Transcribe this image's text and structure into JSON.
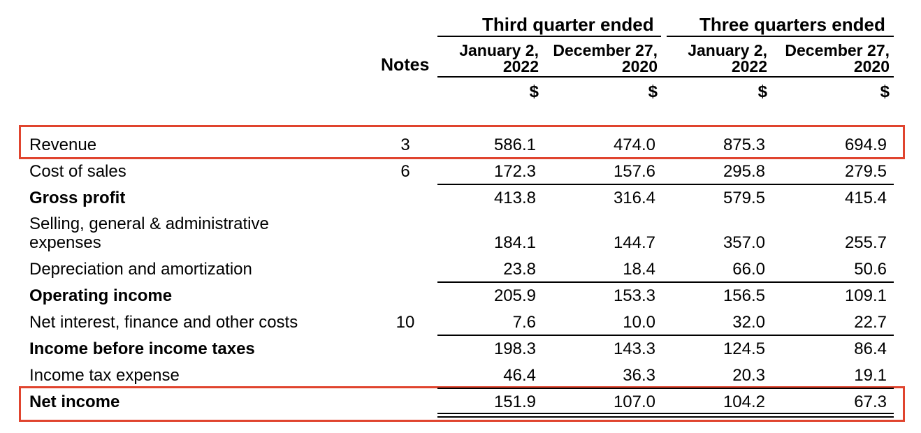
{
  "header": {
    "group1_title": "Third quarter ended",
    "group2_title": "Three quarters ended",
    "notes_label": "Notes",
    "columns": [
      {
        "line1": "January 2,",
        "line2": "2022",
        "currency": "$"
      },
      {
        "line1": "December 27,",
        "line2": "2020",
        "currency": "$"
      },
      {
        "line1": "January 2,",
        "line2": "2022",
        "currency": "$"
      },
      {
        "line1": "December 27,",
        "line2": "2020",
        "currency": "$"
      }
    ]
  },
  "rows": [
    {
      "label": "Revenue",
      "note": "3",
      "values": [
        "586.1",
        "474.0",
        "875.3",
        "694.9"
      ]
    },
    {
      "label": "Cost of sales",
      "note": "6",
      "values": [
        "172.3",
        "157.6",
        "295.8",
        "279.5"
      ]
    },
    {
      "label": "Gross profit",
      "note": "",
      "values": [
        "413.8",
        "316.4",
        "579.5",
        "415.4"
      ]
    },
    {
      "label_line1": "Selling, general & administrative",
      "label_line2": "expenses",
      "note": "",
      "values": [
        "184.1",
        "144.7",
        "357.0",
        "255.7"
      ]
    },
    {
      "label": "Depreciation and amortization",
      "note": "",
      "values": [
        "23.8",
        "18.4",
        "66.0",
        "50.6"
      ]
    },
    {
      "label": "Operating income",
      "note": "",
      "values": [
        "205.9",
        "153.3",
        "156.5",
        "109.1"
      ]
    },
    {
      "label": "Net interest, finance and other costs",
      "note": "10",
      "values": [
        "7.6",
        "10.0",
        "32.0",
        "22.7"
      ]
    },
    {
      "label": "Income before income taxes",
      "note": "",
      "values": [
        "198.3",
        "143.3",
        "124.5",
        "86.4"
      ]
    },
    {
      "label": "Income tax expense",
      "note": "",
      "values": [
        "46.4",
        "36.3",
        "20.3",
        "19.1"
      ]
    },
    {
      "label": "Net income",
      "note": "",
      "values": [
        "151.9",
        "107.0",
        "104.2",
        "67.3"
      ]
    }
  ],
  "highlight_color": "#e0442e"
}
